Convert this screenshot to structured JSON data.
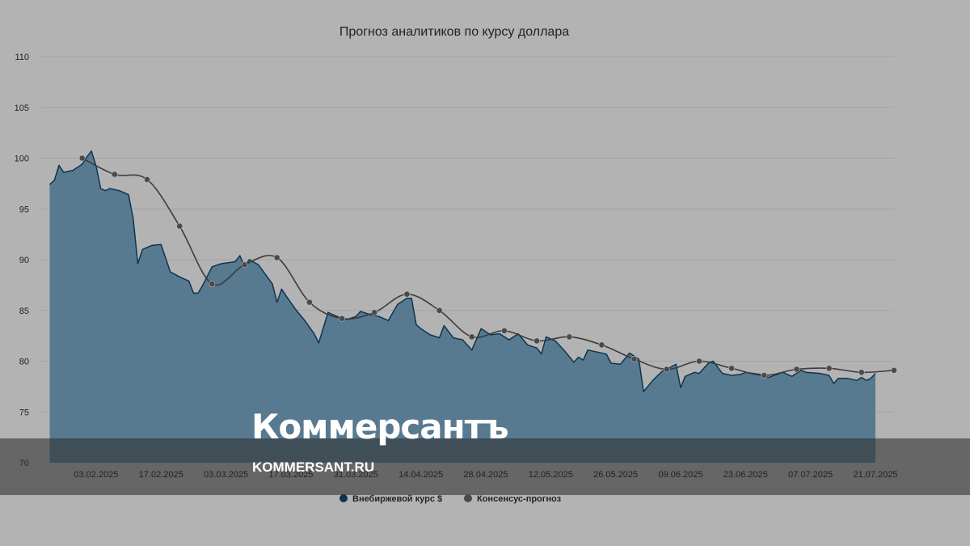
{
  "chart_data": {
    "type": "area",
    "title": "Прогноз аналитиков по курсу доллара",
    "ylim": [
      70,
      110
    ],
    "y_ticks": [
      "70",
      "75",
      "80",
      "85",
      "90",
      "95",
      "100",
      "105",
      "110"
    ],
    "x_tick_labels": [
      "03.02.2025",
      "17.02.2025",
      "03.03.2025",
      "17.03.2025",
      "31.03.2025",
      "14.04.2025",
      "28.04.2025",
      "12.05.2025",
      "26.05.2025",
      "09.06.2025",
      "23.06.2025",
      "07.07.2025",
      "21.07.2025"
    ],
    "x_range": [
      "2025-01-22",
      "2025-07-25"
    ],
    "grid": "horizontal",
    "legend_position": "bottom",
    "colors": {
      "area_fill": "#577a90",
      "area_line": "#0d3550",
      "forecast_line": "#3c3c3c",
      "forecast_marker": "#4a4a4a",
      "grid": "#a3a3a3"
    },
    "series": [
      {
        "name": "Внебиржевой курс $",
        "kind": "area",
        "points": [
          [
            "2025-01-24",
            97.4
          ],
          [
            "2025-01-25",
            97.8
          ],
          [
            "2025-01-26",
            99.3
          ],
          [
            "2025-01-27",
            98.6
          ],
          [
            "2025-01-29",
            98.8
          ],
          [
            "2025-01-31",
            99.4
          ],
          [
            "2025-02-01",
            100.1
          ],
          [
            "2025-02-02",
            100.7
          ],
          [
            "2025-02-03",
            99.2
          ],
          [
            "2025-02-04",
            97.0
          ],
          [
            "2025-02-05",
            96.8
          ],
          [
            "2025-02-06",
            97.0
          ],
          [
            "2025-02-08",
            96.8
          ],
          [
            "2025-02-10",
            96.4
          ],
          [
            "2025-02-11",
            94.0
          ],
          [
            "2025-02-12",
            89.6
          ],
          [
            "2025-02-13",
            91.0
          ],
          [
            "2025-02-15",
            91.4
          ],
          [
            "2025-02-17",
            91.5
          ],
          [
            "2025-02-19",
            88.8
          ],
          [
            "2025-02-21",
            88.3
          ],
          [
            "2025-02-23",
            87.9
          ],
          [
            "2025-02-24",
            86.7
          ],
          [
            "2025-02-25",
            86.7
          ],
          [
            "2025-02-26",
            87.5
          ],
          [
            "2025-02-28",
            89.3
          ],
          [
            "2025-03-02",
            89.6
          ],
          [
            "2025-03-05",
            89.8
          ],
          [
            "2025-03-06",
            90.4
          ],
          [
            "2025-03-07",
            89.3
          ],
          [
            "2025-03-08",
            90.0
          ],
          [
            "2025-03-10",
            89.5
          ],
          [
            "2025-03-13",
            87.6
          ],
          [
            "2025-03-14",
            85.8
          ],
          [
            "2025-03-15",
            87.1
          ],
          [
            "2025-03-16",
            86.4
          ],
          [
            "2025-03-18",
            85.1
          ],
          [
            "2025-03-20",
            84.0
          ],
          [
            "2025-03-22",
            82.7
          ],
          [
            "2025-03-23",
            81.8
          ],
          [
            "2025-03-25",
            84.8
          ],
          [
            "2025-03-27",
            84.4
          ],
          [
            "2025-03-29",
            84.1
          ],
          [
            "2025-03-31",
            84.4
          ],
          [
            "2025-04-01",
            84.9
          ],
          [
            "2025-04-03",
            84.6
          ],
          [
            "2025-04-05",
            84.4
          ],
          [
            "2025-04-07",
            84.0
          ],
          [
            "2025-04-09",
            85.6
          ],
          [
            "2025-04-11",
            86.2
          ],
          [
            "2025-04-12",
            86.2
          ],
          [
            "2025-04-13",
            83.6
          ],
          [
            "2025-04-14",
            83.2
          ],
          [
            "2025-04-16",
            82.6
          ],
          [
            "2025-04-18",
            82.3
          ],
          [
            "2025-04-19",
            83.5
          ],
          [
            "2025-04-21",
            82.3
          ],
          [
            "2025-04-23",
            82.1
          ],
          [
            "2025-04-25",
            81.1
          ],
          [
            "2025-04-27",
            83.2
          ],
          [
            "2025-04-29",
            82.6
          ],
          [
            "2025-05-01",
            82.7
          ],
          [
            "2025-05-03",
            82.1
          ],
          [
            "2025-05-05",
            82.7
          ],
          [
            "2025-05-07",
            81.6
          ],
          [
            "2025-05-09",
            81.3
          ],
          [
            "2025-05-10",
            80.7
          ],
          [
            "2025-05-11",
            82.4
          ],
          [
            "2025-05-13",
            82.0
          ],
          [
            "2025-05-15",
            81.0
          ],
          [
            "2025-05-17",
            79.9
          ],
          [
            "2025-05-18",
            80.4
          ],
          [
            "2025-05-19",
            80.1
          ],
          [
            "2025-05-20",
            81.1
          ],
          [
            "2025-05-22",
            80.9
          ],
          [
            "2025-05-24",
            80.7
          ],
          [
            "2025-05-25",
            79.8
          ],
          [
            "2025-05-27",
            79.7
          ],
          [
            "2025-05-29",
            80.8
          ],
          [
            "2025-05-31",
            80.2
          ],
          [
            "2025-06-01",
            77.0
          ],
          [
            "2025-06-03",
            78.1
          ],
          [
            "2025-06-05",
            79.0
          ],
          [
            "2025-06-06",
            79.2
          ],
          [
            "2025-06-08",
            79.7
          ],
          [
            "2025-06-09",
            77.4
          ],
          [
            "2025-06-10",
            78.5
          ],
          [
            "2025-06-12",
            78.9
          ],
          [
            "2025-06-13",
            78.8
          ],
          [
            "2025-06-15",
            79.8
          ],
          [
            "2025-06-16",
            80.0
          ],
          [
            "2025-06-18",
            78.8
          ],
          [
            "2025-06-20",
            78.6
          ],
          [
            "2025-06-22",
            78.7
          ],
          [
            "2025-06-23",
            78.9
          ],
          [
            "2025-06-26",
            78.7
          ],
          [
            "2025-06-28",
            78.4
          ],
          [
            "2025-07-01",
            78.9
          ],
          [
            "2025-07-03",
            78.5
          ],
          [
            "2025-07-05",
            79.1
          ],
          [
            "2025-07-06",
            78.9
          ],
          [
            "2025-07-09",
            78.8
          ],
          [
            "2025-07-11",
            78.6
          ],
          [
            "2025-07-12",
            77.8
          ],
          [
            "2025-07-13",
            78.3
          ],
          [
            "2025-07-15",
            78.3
          ],
          [
            "2025-07-17",
            78.1
          ],
          [
            "2025-07-18",
            78.4
          ],
          [
            "2025-07-19",
            78.1
          ],
          [
            "2025-07-20",
            78.3
          ],
          [
            "2025-07-21",
            78.8
          ]
        ]
      },
      {
        "name": "Консенсус-прогноз",
        "kind": "line",
        "points": [
          [
            "2025-01-31",
            100.0
          ],
          [
            "2025-02-07",
            98.4
          ],
          [
            "2025-02-14",
            97.9
          ],
          [
            "2025-02-21",
            93.3
          ],
          [
            "2025-02-28",
            87.6
          ],
          [
            "2025-03-07",
            89.5
          ],
          [
            "2025-03-14",
            90.2
          ],
          [
            "2025-03-21",
            85.8
          ],
          [
            "2025-03-28",
            84.2
          ],
          [
            "2025-04-04",
            84.8
          ],
          [
            "2025-04-11",
            86.6
          ],
          [
            "2025-04-18",
            85.0
          ],
          [
            "2025-04-25",
            82.4
          ],
          [
            "2025-05-02",
            83.0
          ],
          [
            "2025-05-09",
            82.0
          ],
          [
            "2025-05-16",
            82.4
          ],
          [
            "2025-05-23",
            81.6
          ],
          [
            "2025-05-30",
            80.2
          ],
          [
            "2025-06-06",
            79.2
          ],
          [
            "2025-06-13",
            80.0
          ],
          [
            "2025-06-20",
            79.3
          ],
          [
            "2025-06-27",
            78.6
          ],
          [
            "2025-07-04",
            79.2
          ],
          [
            "2025-07-11",
            79.3
          ],
          [
            "2025-07-18",
            78.9
          ],
          [
            "2025-07-25",
            79.1
          ]
        ]
      }
    ]
  },
  "watermark": {
    "logo_text": "Коммерсантъ",
    "url_text": "KOMMERSANT.RU"
  }
}
